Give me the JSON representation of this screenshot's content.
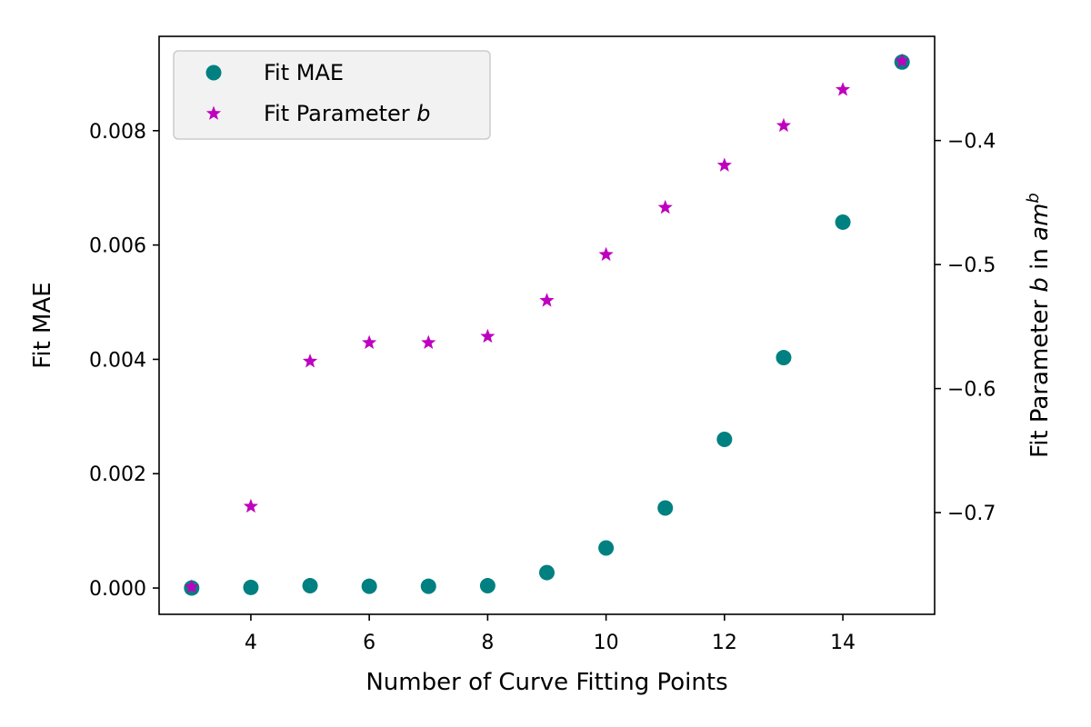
{
  "chart_data": {
    "type": "scatter",
    "xlabel": "Number of Curve Fitting Points",
    "ylabel_left": "Fit MAE",
    "ylabel_right_parts": [
      "Fit Parameter ",
      "b",
      " in ",
      "am",
      "b"
    ],
    "x_ticks": [
      4,
      6,
      8,
      10,
      12,
      14
    ],
    "y_left_ticks": [
      "0.000",
      "0.002",
      "0.004",
      "0.006",
      "0.008"
    ],
    "y_left_tick_values": [
      0.0,
      0.002,
      0.004,
      0.006,
      0.008
    ],
    "y_right_ticks": [
      "−0.7",
      "−0.6",
      "−0.5",
      "−0.4"
    ],
    "y_right_tick_values": [
      -0.7,
      -0.6,
      -0.5,
      -0.4
    ],
    "xlim": [
      2.45,
      15.55
    ],
    "ylim_left": [
      -0.00046,
      0.00965
    ],
    "ylim_right": [
      -0.782,
      -0.316
    ],
    "legend_position": "upper left",
    "series": [
      {
        "name": "Fit MAE",
        "axis": "left",
        "marker": "circle",
        "color": "#008080",
        "x": [
          3,
          4,
          5,
          6,
          7,
          8,
          9,
          10,
          11,
          12,
          13,
          14,
          15
        ],
        "y": [
          0.0,
          1e-05,
          4e-05,
          3e-05,
          3e-05,
          4e-05,
          0.00027,
          0.0007,
          0.0014,
          0.0026,
          0.00403,
          0.0064,
          0.0092
        ]
      },
      {
        "name_parts": [
          "Fit Parameter ",
          "b"
        ],
        "axis": "right",
        "marker": "star",
        "color": "#bf00bf",
        "x": [
          3,
          4,
          5,
          6,
          7,
          8,
          9,
          10,
          11,
          12,
          13,
          14,
          15
        ],
        "y": [
          -0.76,
          -0.695,
          -0.578,
          -0.563,
          -0.563,
          -0.558,
          -0.529,
          -0.492,
          -0.454,
          -0.42,
          -0.388,
          -0.359,
          -0.336
        ]
      }
    ]
  }
}
